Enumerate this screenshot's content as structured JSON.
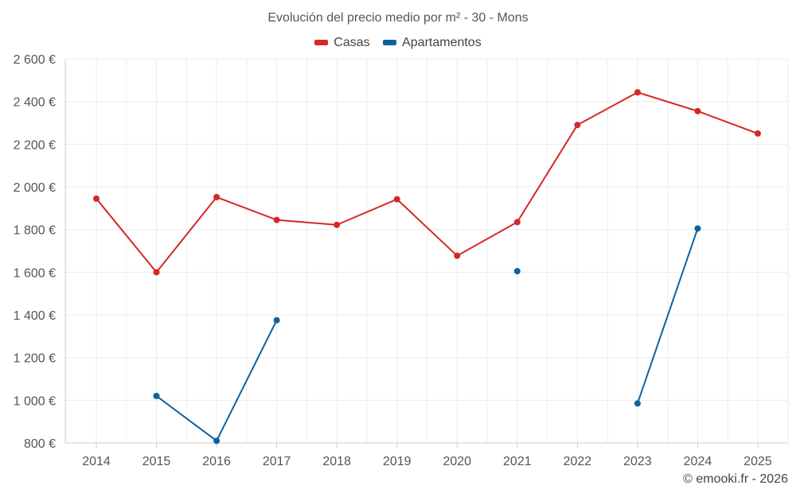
{
  "colors": {
    "casas": "#d62728",
    "apartamentos": "#0b62a1",
    "grid": "#ececec",
    "axis": "#cccccc"
  },
  "legend": {
    "casas": "Casas",
    "apartamentos": "Apartamentos"
  },
  "credit": "© emooki.fr - 2026",
  "chart_data": {
    "type": "line",
    "title": "Evolución del precio medio por m² - 30 - Mons",
    "xlabel": "",
    "ylabel": "",
    "ylim": [
      800,
      2600
    ],
    "yticks": [
      800,
      1000,
      1200,
      1400,
      1600,
      1800,
      2000,
      2200,
      2400,
      2600
    ],
    "ytick_labels": [
      "800 €",
      "1 000 €",
      "1 200 €",
      "1 400 €",
      "1 600 €",
      "1 800 €",
      "2 000 €",
      "2 200 €",
      "2 400 €",
      "2 600 €"
    ],
    "categories": [
      "2014",
      "2015",
      "2016",
      "2017",
      "2018",
      "2019",
      "2020",
      "2021",
      "2022",
      "2023",
      "2024",
      "2025"
    ],
    "series": [
      {
        "name": "Casas",
        "key": "casas",
        "values": [
          1945,
          1600,
          1952,
          1845,
          1822,
          1942,
          1677,
          1835,
          2290,
          2443,
          2355,
          2250
        ]
      },
      {
        "name": "Apartamentos",
        "key": "apartamentos",
        "values": [
          null,
          1020,
          810,
          1375,
          null,
          null,
          null,
          1605,
          null,
          985,
          1805,
          null
        ]
      }
    ]
  }
}
